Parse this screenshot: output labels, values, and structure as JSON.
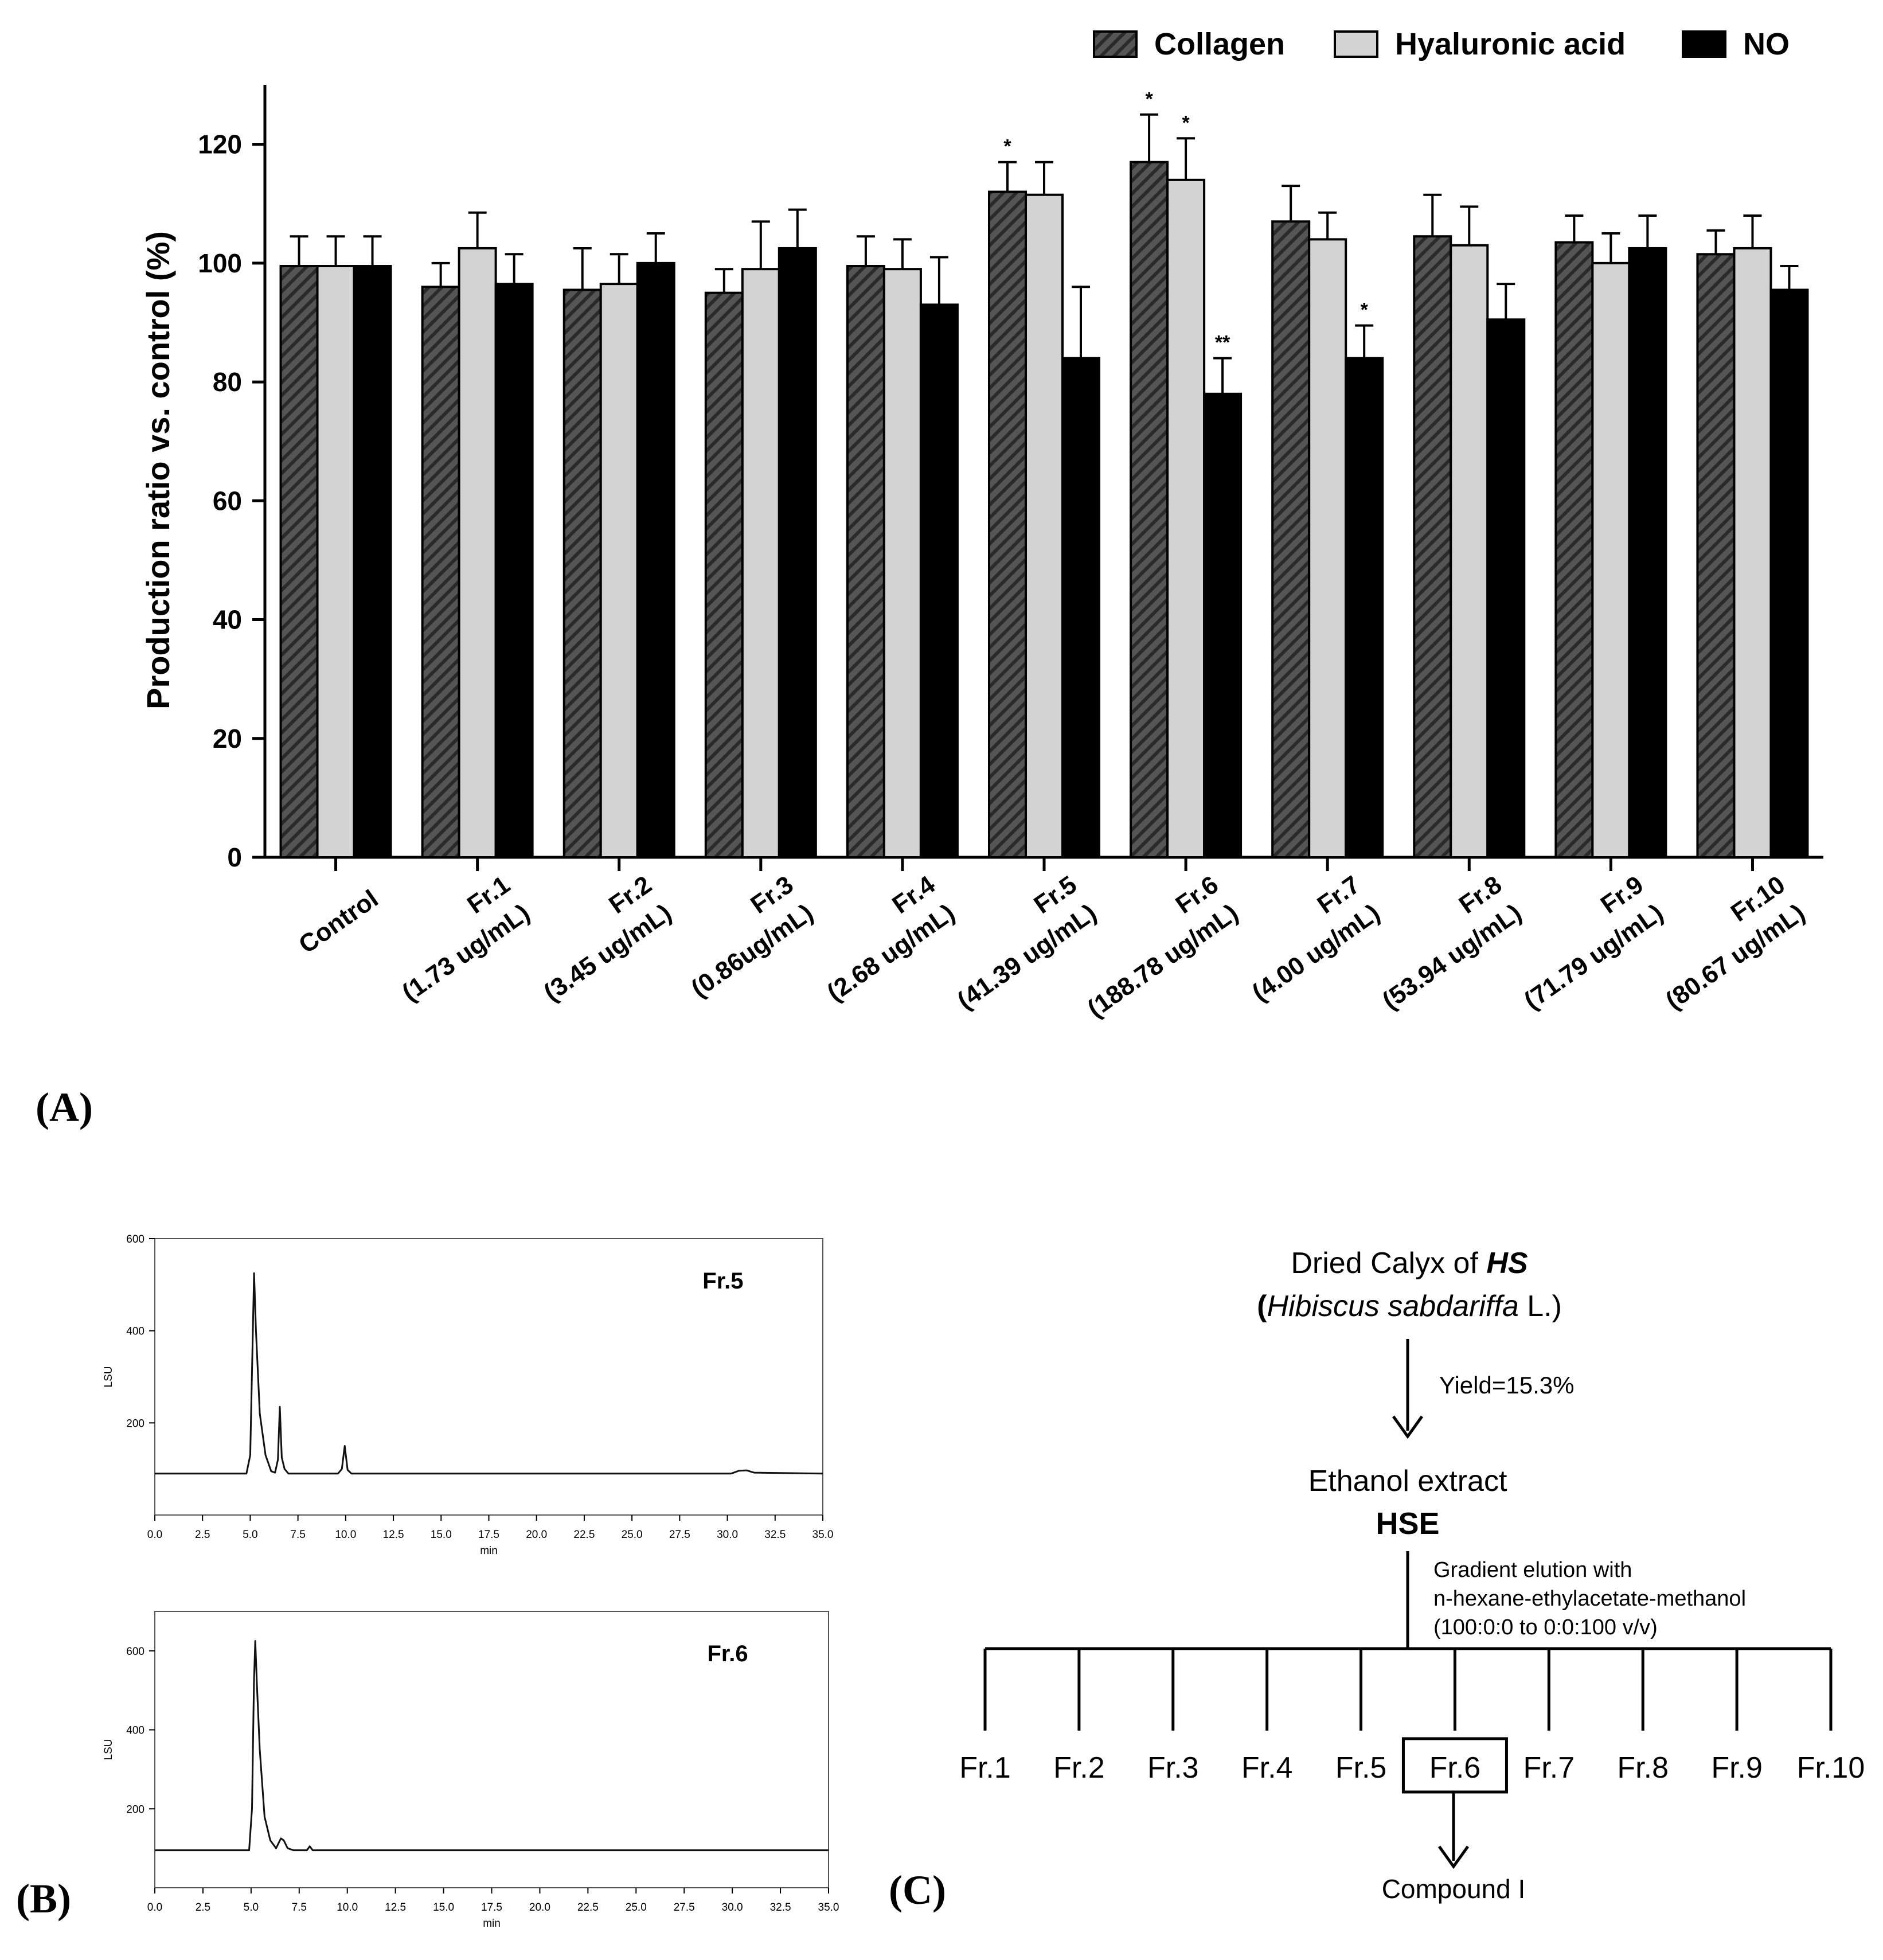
{
  "panels": {
    "a": "(A)",
    "b": "(B)",
    "c": "(C)"
  },
  "chart_data": [
    {
      "type": "bar",
      "ylabel": "Production ratio vs. control (%)",
      "ylim": [
        0,
        130
      ],
      "yticks": [
        0,
        20,
        40,
        60,
        80,
        100,
        120
      ],
      "legend_position": "top-right",
      "categories": [
        "Control",
        "Fr.1",
        "Fr.2",
        "Fr.3",
        "Fr.4",
        "Fr.5",
        "Fr.6",
        "Fr.7",
        "Fr.8",
        "Fr.9",
        "Fr.10"
      ],
      "category_doses": [
        "",
        "(1.73 ug/mL)",
        "(3.45 ug/mL)",
        "(0.86ug/mL)",
        "(2.68 ug/mL)",
        "(41.39 ug/mL)",
        "(188.78 ug/mL)",
        "(4.00 ug/mL)",
        "(53.94 ug/mL)",
        "(71.79 ug/mL)",
        "(80.67 ug/mL)"
      ],
      "series": [
        {
          "name": "Collagen",
          "color": "#555555",
          "pattern": "hatched",
          "values": [
            99.5,
            96,
            95.5,
            95,
            99.5,
            112,
            117,
            107,
            104.5,
            103.5,
            101.5
          ],
          "errors": [
            5,
            4,
            7,
            4,
            5,
            5,
            8,
            6,
            7,
            4.5,
            4
          ],
          "significance": [
            "",
            "",
            "",
            "",
            "",
            "*",
            "*",
            "",
            "",
            "",
            ""
          ]
        },
        {
          "name": "Hyaluronic acid",
          "color": "#d3d3d3",
          "pattern": "solid",
          "values": [
            99.5,
            102.5,
            96.5,
            99,
            99,
            111.5,
            114,
            104,
            103,
            100,
            102.5
          ],
          "errors": [
            5,
            6,
            5,
            8,
            5,
            5.5,
            7,
            4.5,
            6.5,
            5,
            5.5
          ],
          "significance": [
            "",
            "",
            "",
            "",
            "",
            "",
            "*",
            "",
            "",
            "",
            ""
          ]
        },
        {
          "name": "NO",
          "color": "#000000",
          "pattern": "solid",
          "values": [
            99.5,
            96.5,
            100,
            102.5,
            93,
            84,
            78,
            84,
            90.5,
            102.5,
            95.5
          ],
          "errors": [
            5,
            5,
            5,
            6.5,
            8,
            12,
            6,
            5.5,
            6,
            5.5,
            4
          ],
          "significance": [
            "",
            "",
            "",
            "",
            "",
            "",
            "**",
            "*",
            "",
            "",
            ""
          ]
        }
      ]
    },
    {
      "type": "line",
      "title": "Fr.5",
      "ylabel": "LSU",
      "xlabel": "min",
      "xlim": [
        0,
        35
      ],
      "ylim": [
        0,
        600
      ],
      "xticks": [
        "0.0",
        "2.5",
        "5.0",
        "7.5",
        "10.0",
        "12.5",
        "15.0",
        "17.5",
        "20.0",
        "22.5",
        "25.0",
        "27.5",
        "30.0",
        "32.5",
        "35.0"
      ],
      "yticks": [
        200,
        400,
        600
      ],
      "x": [
        0,
        4.8,
        5.0,
        5.1,
        5.2,
        5.3,
        5.5,
        5.8,
        6.1,
        6.3,
        6.45,
        6.55,
        6.65,
        6.8,
        7.0,
        9.6,
        9.8,
        9.95,
        10.1,
        10.3,
        30.2,
        30.6,
        31.0,
        31.4,
        35
      ],
      "y": [
        90,
        90,
        130,
        330,
        525,
        400,
        220,
        130,
        95,
        92,
        120,
        235,
        125,
        100,
        90,
        90,
        100,
        150,
        98,
        90,
        90,
        96,
        97,
        92,
        90
      ]
    },
    {
      "type": "line",
      "title": "Fr.6",
      "ylabel": "LSU",
      "xlabel": "min",
      "xlim": [
        0,
        35
      ],
      "ylim": [
        0,
        700
      ],
      "xticks": [
        "0.0",
        "2.5",
        "5.0",
        "7.5",
        "10.0",
        "12.5",
        "15.0",
        "17.5",
        "20.0",
        "22.5",
        "25.0",
        "27.5",
        "30.0",
        "32.5",
        "35.0"
      ],
      "yticks": [
        200,
        400,
        600
      ],
      "x": [
        0,
        4.9,
        5.05,
        5.15,
        5.22,
        5.3,
        5.45,
        5.7,
        6.0,
        6.3,
        6.55,
        6.7,
        6.9,
        7.2,
        7.9,
        8.05,
        8.2,
        35
      ],
      "y": [
        95,
        95,
        200,
        520,
        625,
        520,
        350,
        180,
        120,
        100,
        125,
        120,
        100,
        95,
        95,
        105,
        95,
        95
      ]
    }
  ],
  "legend": [
    {
      "label": "Collagen",
      "pattern": "hatched"
    },
    {
      "label": "Hyaluronic acid",
      "pattern": "light"
    },
    {
      "label": "NO",
      "pattern": "black"
    }
  ],
  "scheme": {
    "source_line1_pre": "Dried Calyx of ",
    "source_line1_bold": "HS",
    "source_line2_open": "(",
    "source_line2_italic": "Hibiscus sabdariffa",
    "source_line2_close": " L.)",
    "yield": "Yield=15.3%",
    "extract_line1": "Ethanol extract",
    "extract_line2": "HSE",
    "elution_line1": "Gradient elution with",
    "elution_line2": "n-hexane-ethylacetate-methanol",
    "elution_line3": "(100:0:0 to 0:0:100 v/v)",
    "fractions": [
      "Fr.1",
      "Fr.2",
      "Fr.3",
      "Fr.4",
      "Fr.5",
      "Fr.6",
      "Fr.7",
      "Fr.8",
      "Fr.9",
      "Fr.10"
    ],
    "boxed_fraction_index": 5,
    "compound": "Compound I"
  }
}
